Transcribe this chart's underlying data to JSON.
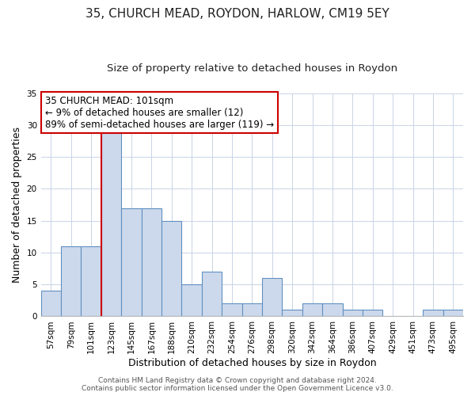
{
  "title": "35, CHURCH MEAD, ROYDON, HARLOW, CM19 5EY",
  "subtitle": "Size of property relative to detached houses in Roydon",
  "xlabel": "Distribution of detached houses by size in Roydon",
  "ylabel": "Number of detached properties",
  "categories": [
    "57sqm",
    "79sqm",
    "101sqm",
    "123sqm",
    "145sqm",
    "167sqm",
    "188sqm",
    "210sqm",
    "232sqm",
    "254sqm",
    "276sqm",
    "298sqm",
    "320sqm",
    "342sqm",
    "364sqm",
    "386sqm",
    "407sqm",
    "429sqm",
    "451sqm",
    "473sqm",
    "495sqm"
  ],
  "values": [
    4,
    11,
    11,
    29,
    17,
    17,
    15,
    5,
    7,
    2,
    2,
    6,
    1,
    2,
    2,
    1,
    1,
    0,
    0,
    1,
    1
  ],
  "bar_color": "#ccd9ec",
  "bar_edge_color": "#6090c0",
  "highlight_index": 2,
  "highlight_line_color": "#cc0000",
  "ylim": [
    0,
    35
  ],
  "yticks": [
    0,
    5,
    10,
    15,
    20,
    25,
    30,
    35
  ],
  "annotation_line1": "35 CHURCH MEAD: 101sqm",
  "annotation_line2": "← 9% of detached houses are smaller (12)",
  "annotation_line3": "89% of semi-detached houses are larger (119) →",
  "annotation_box_edge_color": "#cc0000",
  "footer_line1": "Contains HM Land Registry data © Crown copyright and database right 2024.",
  "footer_line2": "Contains public sector information licensed under the Open Government Licence v3.0.",
  "background_color": "#ffffff",
  "grid_color": "#c8d4e4",
  "title_fontsize": 11,
  "subtitle_fontsize": 9.5,
  "axis_label_fontsize": 9,
  "tick_fontsize": 7.5,
  "annotation_fontsize": 8.5,
  "footer_fontsize": 6.5
}
